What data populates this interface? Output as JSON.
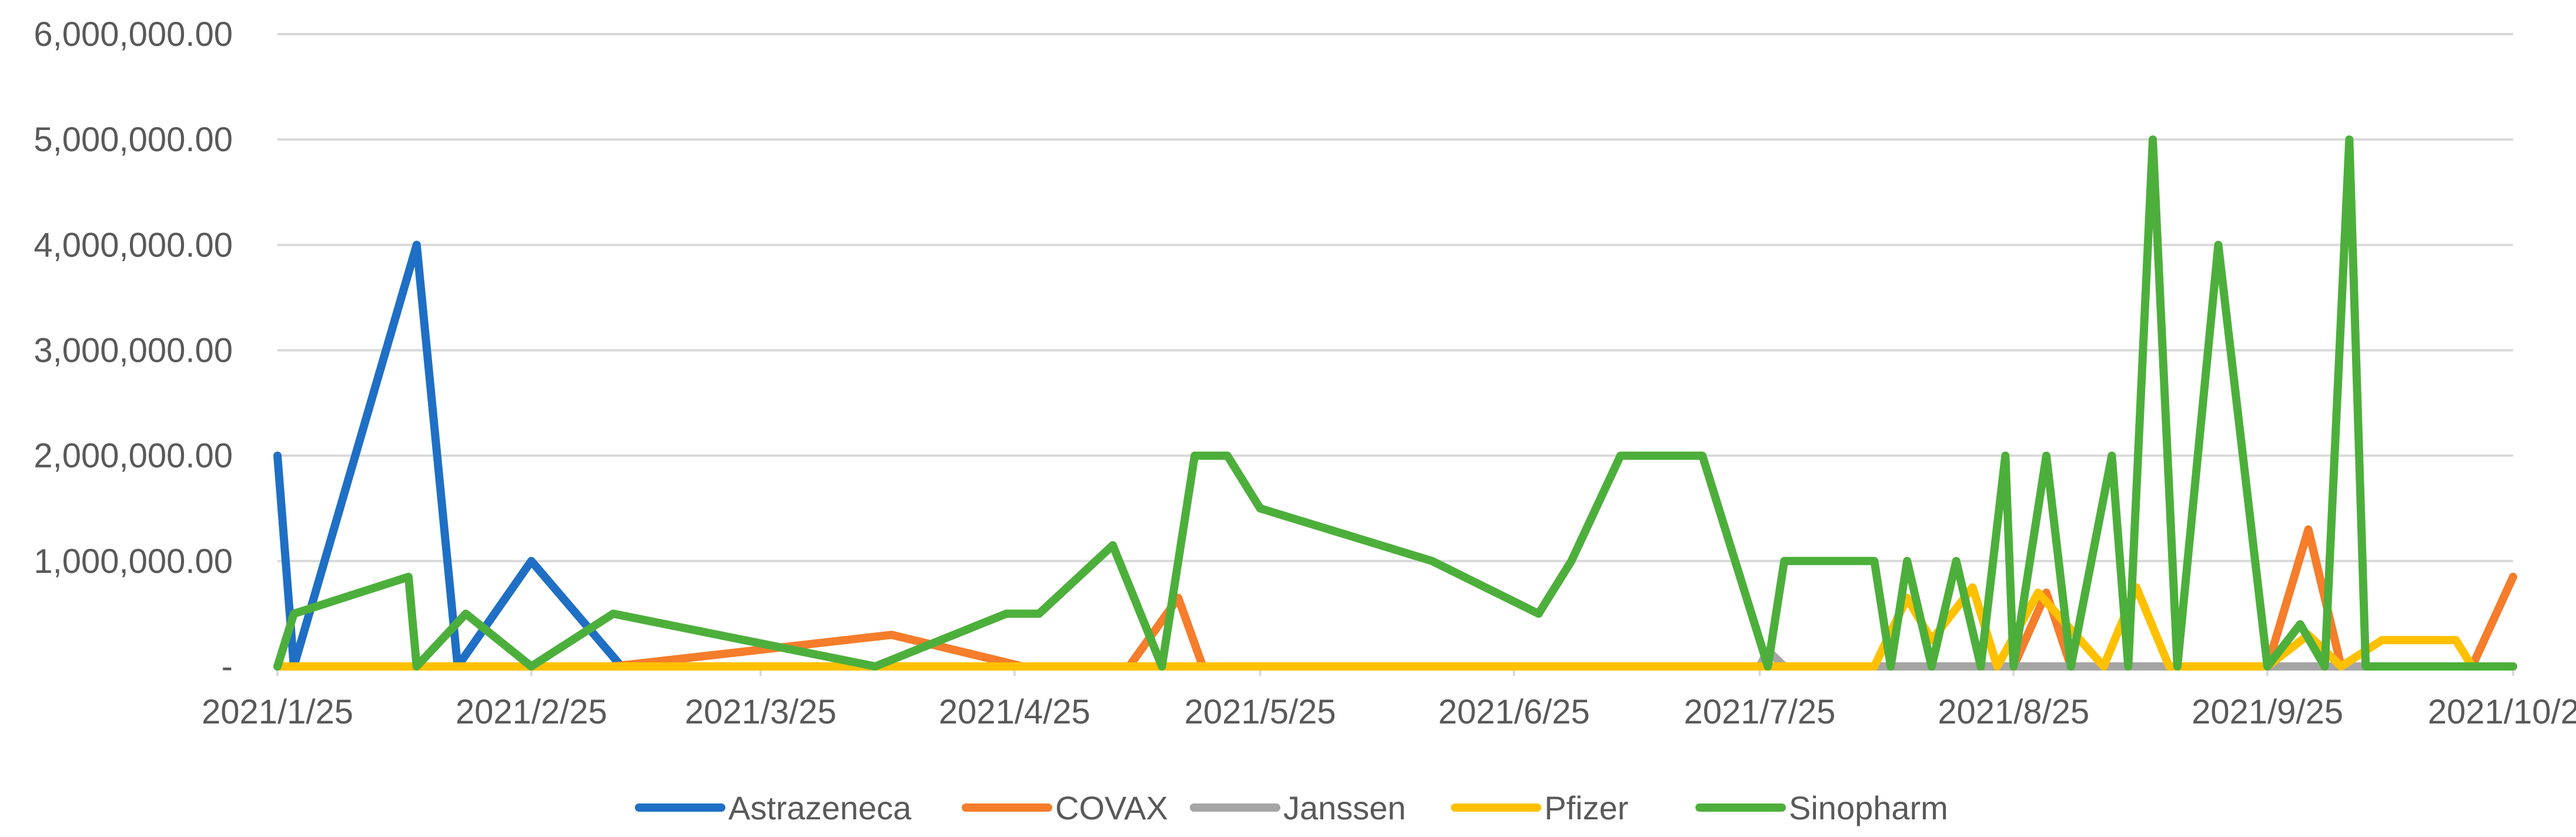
{
  "chart_data": {
    "type": "line",
    "title": "",
    "xlabel": "",
    "ylabel": "",
    "ylim": [
      0,
      6000000
    ],
    "yticks": [
      {
        "value": 0,
        "label": "-"
      },
      {
        "value": 1000000,
        "label": "1,000,000.00"
      },
      {
        "value": 2000000,
        "label": "2,000,000.00"
      },
      {
        "value": 3000000,
        "label": "3,000,000.00"
      },
      {
        "value": 4000000,
        "label": "4,000,000.00"
      },
      {
        "value": 5000000,
        "label": "5,000,000.00"
      },
      {
        "value": 6000000,
        "label": "6,000,000.00"
      }
    ],
    "xlim": [
      "2021-01-25",
      "2021-10-25"
    ],
    "xticks": [
      {
        "value": "2021-01-25",
        "label": "2021/1/25"
      },
      {
        "value": "2021-02-25",
        "label": "2021/2/25"
      },
      {
        "value": "2021-03-25",
        "label": "2021/3/25"
      },
      {
        "value": "2021-04-25",
        "label": "2021/4/25"
      },
      {
        "value": "2021-05-25",
        "label": "2021/5/25"
      },
      {
        "value": "2021-06-25",
        "label": "2021/6/25"
      },
      {
        "value": "2021-07-25",
        "label": "2021/7/25"
      },
      {
        "value": "2021-08-25",
        "label": "2021/8/25"
      },
      {
        "value": "2021-09-25",
        "label": "2021/9/25"
      },
      {
        "value": "2021-10-25",
        "label": "2021/10/25"
      }
    ],
    "grid": "horizontal",
    "legend": "bottom",
    "series": [
      {
        "name": "Astrazeneca",
        "color": "#1F6FC5",
        "points": [
          [
            "2021-01-25",
            2000000
          ],
          [
            "2021-01-27",
            0
          ],
          [
            "2021-02-11",
            4000000
          ],
          [
            "2021-02-16",
            0
          ],
          [
            "2021-02-25",
            1000000
          ],
          [
            "2021-03-08",
            0
          ]
        ]
      },
      {
        "name": "COVAX",
        "color": "#F57D2B",
        "points": [
          [
            "2021-01-25",
            0
          ],
          [
            "2021-03-07",
            0
          ],
          [
            "2021-04-10",
            300000
          ],
          [
            "2021-04-26",
            0
          ],
          [
            "2021-05-09",
            0
          ],
          [
            "2021-05-15",
            650000
          ],
          [
            "2021-05-18",
            0
          ],
          [
            "2021-08-25",
            0
          ],
          [
            "2021-08-29",
            700000
          ],
          [
            "2021-09-01",
            0
          ],
          [
            "2021-09-25",
            0
          ],
          [
            "2021-09-30",
            1300000
          ],
          [
            "2021-10-04",
            0
          ],
          [
            "2021-10-20",
            0
          ],
          [
            "2021-10-25",
            850000
          ]
        ]
      },
      {
        "name": "Janssen",
        "color": "#A5A5A5",
        "points": [
          [
            "2021-01-25",
            0
          ],
          [
            "2021-07-25",
            0
          ],
          [
            "2021-07-26",
            150000
          ],
          [
            "2021-07-28",
            0
          ],
          [
            "2021-10-25",
            0
          ]
        ]
      },
      {
        "name": "Pfizer",
        "color": "#FFC000",
        "points": [
          [
            "2021-01-25",
            0
          ],
          [
            "2021-08-08",
            0
          ],
          [
            "2021-08-12",
            650000
          ],
          [
            "2021-08-15",
            250000
          ],
          [
            "2021-08-20",
            750000
          ],
          [
            "2021-08-23",
            0
          ],
          [
            "2021-08-28",
            700000
          ],
          [
            "2021-09-05",
            0
          ],
          [
            "2021-09-09",
            750000
          ],
          [
            "2021-09-13",
            0
          ],
          [
            "2021-09-25",
            0
          ],
          [
            "2021-09-30",
            300000
          ],
          [
            "2021-10-04",
            0
          ],
          [
            "2021-10-09",
            250000
          ],
          [
            "2021-10-18",
            250000
          ],
          [
            "2021-10-20",
            0
          ],
          [
            "2021-10-25",
            0
          ]
        ]
      },
      {
        "name": "Sinopharm",
        "color": "#4DAF3B",
        "points": [
          [
            "2021-01-25",
            0
          ],
          [
            "2021-01-27",
            500000
          ],
          [
            "2021-02-10",
            850000
          ],
          [
            "2021-02-11",
            0
          ],
          [
            "2021-02-17",
            500000
          ],
          [
            "2021-02-25",
            0
          ],
          [
            "2021-03-07",
            500000
          ],
          [
            "2021-04-08",
            0
          ],
          [
            "2021-04-24",
            500000
          ],
          [
            "2021-04-28",
            500000
          ],
          [
            "2021-05-07",
            1150000
          ],
          [
            "2021-05-13",
            0
          ],
          [
            "2021-05-17",
            2000000
          ],
          [
            "2021-05-21",
            2000000
          ],
          [
            "2021-05-25",
            1500000
          ],
          [
            "2021-06-15",
            1000000
          ],
          [
            "2021-06-28",
            500000
          ],
          [
            "2021-07-02",
            1000000
          ],
          [
            "2021-07-08",
            2000000
          ],
          [
            "2021-07-18",
            2000000
          ],
          [
            "2021-07-26",
            0
          ],
          [
            "2021-07-28",
            1000000
          ],
          [
            "2021-08-08",
            1000000
          ],
          [
            "2021-08-10",
            0
          ],
          [
            "2021-08-12",
            1000000
          ],
          [
            "2021-08-15",
            0
          ],
          [
            "2021-08-18",
            1000000
          ],
          [
            "2021-08-21",
            0
          ],
          [
            "2021-08-24",
            2000000
          ],
          [
            "2021-08-25",
            0
          ],
          [
            "2021-08-29",
            2000000
          ],
          [
            "2021-09-01",
            0
          ],
          [
            "2021-09-06",
            2000000
          ],
          [
            "2021-09-08",
            0
          ],
          [
            "2021-09-11",
            5000000
          ],
          [
            "2021-09-14",
            0
          ],
          [
            "2021-09-19",
            4000000
          ],
          [
            "2021-09-25",
            0
          ],
          [
            "2021-09-29",
            400000
          ],
          [
            "2021-10-02",
            0
          ],
          [
            "2021-10-05",
            5000000
          ],
          [
            "2021-10-07",
            0
          ],
          [
            "2021-10-25",
            0
          ]
        ]
      }
    ]
  }
}
